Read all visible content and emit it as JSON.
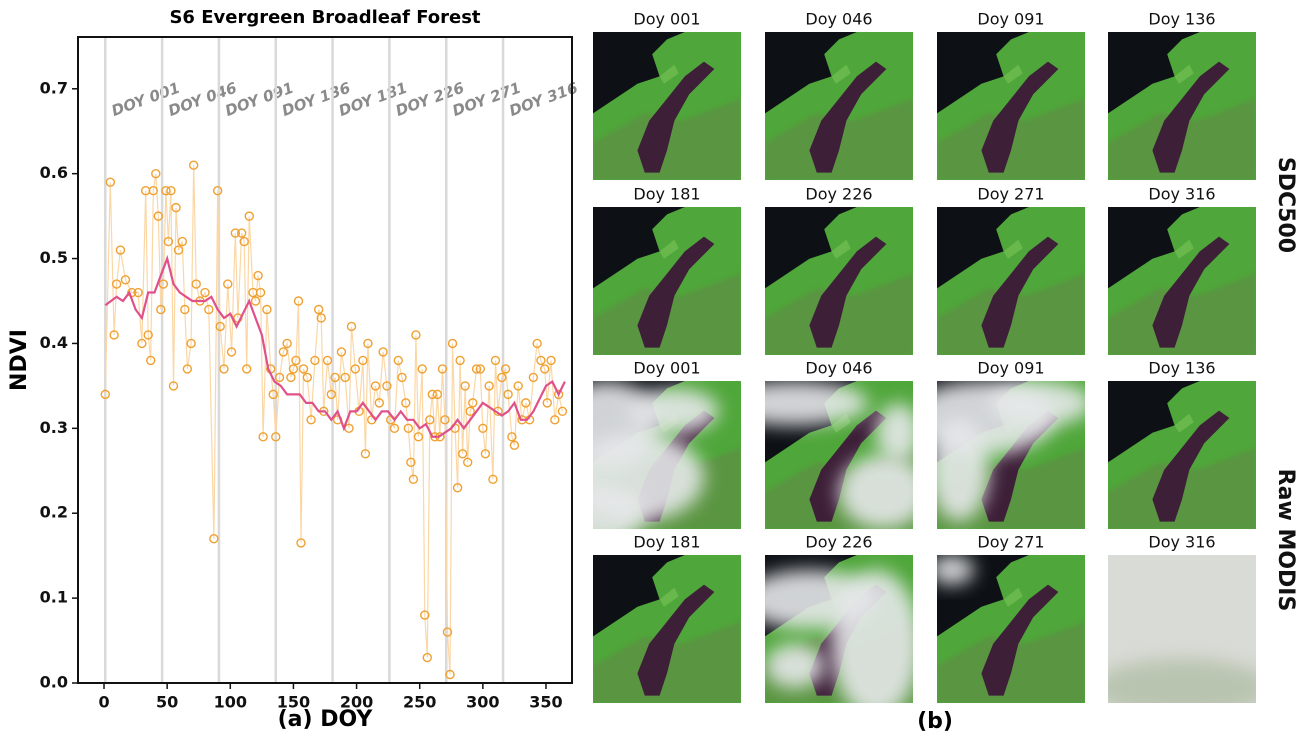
{
  "chart_data": {
    "type": "scatter",
    "title": "S6 Evergreen Broadleaf Forest",
    "xlabel": "(a) DOY",
    "ylabel": "NDVI",
    "xlim": [
      -20.6,
      370.6
    ],
    "ylim": [
      0,
      0.761
    ],
    "xticks": [
      0,
      50,
      100,
      150,
      200,
      250,
      300,
      350
    ],
    "yticks": [
      {
        "value": 0,
        "label": "0.0"
      },
      0.1,
      0.2,
      0.3,
      0.4,
      0.5,
      0.6,
      0.7
    ],
    "doy_lines": {
      "color": "#d9d9d9",
      "x": [
        1,
        46,
        91,
        136,
        181,
        226,
        271,
        316
      ],
      "labels": [
        "DOY 001",
        "DOY 046",
        "DOY 091",
        "DOY 136",
        "DOY 181",
        "DOY 226",
        "DOY 271",
        "DOY 316"
      ]
    },
    "scatter": {
      "color": "#f0a030",
      "line_color": "#fbd7a6",
      "x": [
        1,
        5,
        8,
        10,
        13,
        17,
        22,
        27,
        30,
        33,
        35,
        37,
        39,
        41,
        43,
        45,
        47,
        49,
        51,
        53,
        55,
        57,
        59,
        62,
        64,
        66,
        69,
        71,
        73,
        76,
        80,
        83,
        87,
        90,
        92,
        95,
        98,
        101,
        104,
        106,
        109,
        111,
        113,
        115,
        118,
        120,
        122,
        124,
        126,
        129,
        132,
        134,
        136,
        139,
        142,
        145,
        148,
        150,
        152,
        154,
        156,
        158,
        161,
        164,
        167,
        170,
        172,
        174,
        177,
        180,
        183,
        185,
        188,
        191,
        194,
        196,
        199,
        202,
        205,
        207,
        209,
        212,
        215,
        218,
        221,
        224,
        227,
        230,
        233,
        236,
        239,
        241,
        243,
        245,
        247,
        249,
        252,
        254,
        256,
        258,
        260,
        262,
        264,
        266,
        268,
        270,
        272,
        274,
        276,
        278,
        280,
        282,
        284,
        286,
        288,
        290,
        292,
        295,
        298,
        300,
        302,
        305,
        308,
        310,
        312,
        315,
        318,
        320,
        323,
        325,
        328,
        331,
        334,
        337,
        340,
        343,
        346,
        349,
        351,
        354,
        357,
        360,
        363
      ],
      "y": [
        0.34,
        0.59,
        0.41,
        0.47,
        0.51,
        0.475,
        0.46,
        0.46,
        0.4,
        0.58,
        0.41,
        0.38,
        0.58,
        0.6,
        0.55,
        0.44,
        0.47,
        0.58,
        0.52,
        0.58,
        0.35,
        0.56,
        0.51,
        0.52,
        0.44,
        0.37,
        0.4,
        0.61,
        0.47,
        0.45,
        0.46,
        0.44,
        0.17,
        0.58,
        0.42,
        0.37,
        0.47,
        0.39,
        0.53,
        0.43,
        0.53,
        0.52,
        0.37,
        0.55,
        0.46,
        0.45,
        0.48,
        0.46,
        0.29,
        0.44,
        0.37,
        0.34,
        0.29,
        0.36,
        0.39,
        0.4,
        0.36,
        0.37,
        0.38,
        0.45,
        0.165,
        0.37,
        0.36,
        0.31,
        0.38,
        0.44,
        0.43,
        0.32,
        0.38,
        0.34,
        0.36,
        0.31,
        0.39,
        0.36,
        0.3,
        0.42,
        0.37,
        0.32,
        0.38,
        0.27,
        0.4,
        0.31,
        0.35,
        0.33,
        0.39,
        0.35,
        0.31,
        0.3,
        0.38,
        0.36,
        0.33,
        0.3,
        0.26,
        0.24,
        0.41,
        0.29,
        0.37,
        0.08,
        0.03,
        0.31,
        0.34,
        0.29,
        0.34,
        0.29,
        0.37,
        0.31,
        0.06,
        0.01,
        0.4,
        0.3,
        0.23,
        0.38,
        0.27,
        0.35,
        0.26,
        0.32,
        0.33,
        0.37,
        0.37,
        0.3,
        0.27,
        0.35,
        0.24,
        0.38,
        0.32,
        0.36,
        0.37,
        0.34,
        0.29,
        0.28,
        0.35,
        0.31,
        0.33,
        0.31,
        0.36,
        0.4,
        0.38,
        0.37,
        0.33,
        0.38,
        0.31,
        0.34,
        0.32
      ]
    },
    "smooth": {
      "color": "#e0508a",
      "x": [
        1,
        10,
        15,
        20,
        25,
        30,
        35,
        40,
        45,
        50,
        55,
        60,
        65,
        70,
        75,
        80,
        85,
        90,
        95,
        100,
        105,
        110,
        115,
        120,
        125,
        130,
        135,
        140,
        145,
        150,
        155,
        160,
        165,
        170,
        175,
        180,
        185,
        190,
        195,
        200,
        205,
        210,
        215,
        220,
        225,
        230,
        235,
        240,
        245,
        250,
        255,
        260,
        265,
        270,
        275,
        280,
        285,
        290,
        295,
        300,
        305,
        310,
        315,
        320,
        325,
        330,
        335,
        340,
        345,
        350,
        355,
        360,
        365
      ],
      "y": [
        0.445,
        0.455,
        0.45,
        0.46,
        0.44,
        0.43,
        0.46,
        0.46,
        0.48,
        0.5,
        0.47,
        0.46,
        0.455,
        0.45,
        0.45,
        0.45,
        0.455,
        0.44,
        0.43,
        0.435,
        0.42,
        0.435,
        0.45,
        0.43,
        0.41,
        0.37,
        0.355,
        0.35,
        0.34,
        0.34,
        0.34,
        0.33,
        0.33,
        0.32,
        0.32,
        0.31,
        0.32,
        0.3,
        0.32,
        0.32,
        0.33,
        0.32,
        0.31,
        0.32,
        0.32,
        0.31,
        0.32,
        0.31,
        0.31,
        0.3,
        0.305,
        0.29,
        0.29,
        0.295,
        0.3,
        0.31,
        0.3,
        0.31,
        0.32,
        0.33,
        0.325,
        0.32,
        0.315,
        0.32,
        0.33,
        0.31,
        0.31,
        0.32,
        0.335,
        0.35,
        0.355,
        0.34,
        0.355
      ]
    }
  },
  "panel_b": {
    "label": "(b)",
    "rows": [
      "SDC500",
      "Raw MODIS"
    ],
    "tiles": [
      "Doy 001",
      "Doy 046",
      "Doy 091",
      "Doy 136",
      "Doy 181",
      "Doy 226",
      "Doy 271",
      "Doy 316",
      "Doy 001",
      "Doy 046",
      "Doy 091",
      "Doy 136",
      "Doy 181",
      "Doy 226",
      "Doy 271",
      "Doy 316"
    ]
  }
}
